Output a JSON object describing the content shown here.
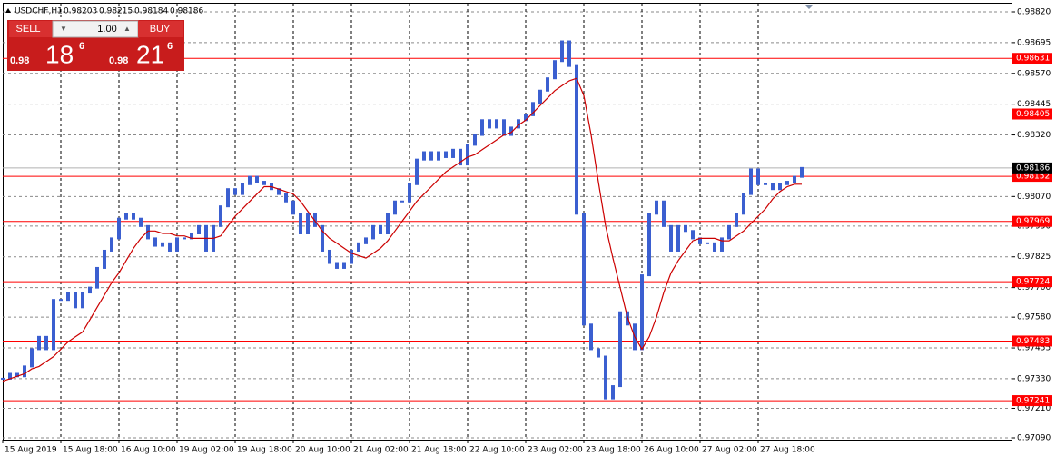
{
  "chart_data": {
    "type": "candlestick",
    "header": {
      "symbol": "USDCHF,H1",
      "ohlc": [
        0.98203,
        0.98215,
        0.98184,
        0.98186
      ]
    },
    "trade_panel": {
      "sell": "SELL",
      "buy": "BUY",
      "lot": "1.00",
      "sell_price": {
        "prefix": "0.98",
        "big": "18",
        "sup": "6"
      },
      "buy_price": {
        "prefix": "0.98",
        "big": "21",
        "sup": "6"
      }
    },
    "xticks": [
      {
        "value": 0,
        "label": "15 Aug 2019"
      },
      {
        "value": 8,
        "label": "15 Aug 18:00"
      },
      {
        "value": 16,
        "label": "16 Aug 10:00"
      },
      {
        "value": 24,
        "label": "19 Aug 02:00"
      },
      {
        "value": 32,
        "label": "19 Aug 18:00"
      },
      {
        "value": 40,
        "label": "20 Aug 10:00"
      },
      {
        "value": 48,
        "label": "21 Aug 02:00"
      },
      {
        "value": 56,
        "label": "21 Aug 18:00"
      },
      {
        "value": 64,
        "label": "22 Aug 10:00"
      },
      {
        "value": 72,
        "label": "23 Aug 02:00"
      },
      {
        "value": 80,
        "label": "23 Aug 18:00"
      },
      {
        "value": 88,
        "label": "26 Aug 10:00"
      },
      {
        "value": 96,
        "label": "27 Aug 02:00"
      },
      {
        "value": 104,
        "label": "27 Aug 18:00"
      }
    ],
    "xlim": [
      0,
      138.875
    ],
    "ylim": [
      0.9709,
      0.9882
    ],
    "yticks": [
      {
        "value": 0.9882,
        "label": "0.98820"
      },
      {
        "value": 0.98695,
        "label": "0.98695"
      },
      {
        "value": 0.9857,
        "label": "0.98570"
      },
      {
        "value": 0.98445,
        "label": "0.98445"
      },
      {
        "value": 0.9832,
        "label": "0.98320"
      },
      {
        "value": 0.9807,
        "label": "0.98070"
      },
      {
        "value": 0.9795,
        "label": "0.97950"
      },
      {
        "value": 0.97825,
        "label": "0.97825"
      },
      {
        "value": 0.977,
        "label": "0.97700"
      },
      {
        "value": 0.9758,
        "label": "0.97580"
      },
      {
        "value": 0.97455,
        "label": "0.97455"
      },
      {
        "value": 0.9733,
        "label": "0.97330"
      },
      {
        "value": 0.9721,
        "label": "0.97210"
      },
      {
        "value": 0.9709,
        "label": "0.97090"
      }
    ],
    "grid": true,
    "levels": {
      "color": "#ff0000",
      "values": [
        0.98631,
        0.98405,
        0.98152,
        0.97969,
        0.97724,
        0.97483,
        0.97241
      ]
    },
    "current_price": 0.98186,
    "series": [
      {
        "name": "close",
        "color": "#3b5fd0",
        "values": [
          0.9733,
          0.9735,
          0.9734,
          0.9738,
          0.9745,
          0.975,
          0.9745,
          0.9765,
          0.9765,
          0.9768,
          0.9762,
          0.9768,
          0.977,
          0.9778,
          0.9785,
          0.979,
          0.9798,
          0.98,
          0.9798,
          0.9795,
          0.979,
          0.9787,
          0.9788,
          0.9785,
          0.979,
          0.979,
          0.9792,
          0.9795,
          0.9785,
          0.9795,
          0.9803,
          0.981,
          0.9808,
          0.9812,
          0.9815,
          0.9813,
          0.9812,
          0.981,
          0.9808,
          0.9805,
          0.98,
          0.9792,
          0.98,
          0.9795,
          0.9785,
          0.978,
          0.9778,
          0.978,
          0.9785,
          0.9788,
          0.979,
          0.9795,
          0.9792,
          0.98,
          0.9805,
          0.9805,
          0.9812,
          0.9822,
          0.9825,
          0.9822,
          0.9825,
          0.9823,
          0.9826,
          0.982,
          0.9828,
          0.9832,
          0.9838,
          0.9835,
          0.9838,
          0.9832,
          0.9835,
          0.9838,
          0.984,
          0.9845,
          0.985,
          0.9855,
          0.9862,
          0.987,
          0.986,
          0.98,
          0.9755,
          0.9745,
          0.9742,
          0.9725,
          0.973,
          0.976,
          0.9755,
          0.9745,
          0.9775,
          0.98,
          0.9805,
          0.9795,
          0.9785,
          0.9795,
          0.9793,
          0.979,
          0.9788,
          0.9788,
          0.9785,
          0.979,
          0.9795,
          0.98,
          0.9808,
          0.9818,
          0.9812,
          0.9812,
          0.981,
          0.9812,
          0.9813,
          0.9815,
          0.98186
        ]
      },
      {
        "name": "moving average",
        "color": "#cc0000",
        "values": [
          0.9732,
          0.9733,
          0.9734,
          0.9735,
          0.9737,
          0.9738,
          0.974,
          0.9742,
          0.9745,
          0.9748,
          0.975,
          0.9752,
          0.9757,
          0.9762,
          0.9767,
          0.9772,
          0.9776,
          0.9781,
          0.9786,
          0.979,
          0.9793,
          0.9793,
          0.9792,
          0.9792,
          0.9791,
          0.9791,
          0.979,
          0.979,
          0.979,
          0.979,
          0.9791,
          0.9795,
          0.9799,
          0.9802,
          0.9805,
          0.9808,
          0.9811,
          0.9811,
          0.981,
          0.9809,
          0.9808,
          0.9805,
          0.9801,
          0.9797,
          0.9793,
          0.979,
          0.9788,
          0.9786,
          0.9784,
          0.9783,
          0.9782,
          0.9784,
          0.9786,
          0.9789,
          0.9793,
          0.9797,
          0.9801,
          0.9805,
          0.9808,
          0.9811,
          0.9814,
          0.9817,
          0.9819,
          0.9821,
          0.9823,
          0.9824,
          0.9826,
          0.9828,
          0.983,
          0.9832,
          0.9833,
          0.9836,
          0.9838,
          0.9841,
          0.9844,
          0.9847,
          0.985,
          0.9852,
          0.9854,
          0.9855,
          0.9848,
          0.9832,
          0.9813,
          0.9795,
          0.9782,
          0.977,
          0.9758,
          0.975,
          0.9745,
          0.975,
          0.9758,
          0.9768,
          0.9776,
          0.9781,
          0.9785,
          0.9789,
          0.979,
          0.979,
          0.979,
          0.9789,
          0.9789,
          0.9791,
          0.9793,
          0.9796,
          0.9799,
          0.9802,
          0.9806,
          0.9809,
          0.9811,
          0.9812,
          0.9812
        ]
      }
    ]
  }
}
